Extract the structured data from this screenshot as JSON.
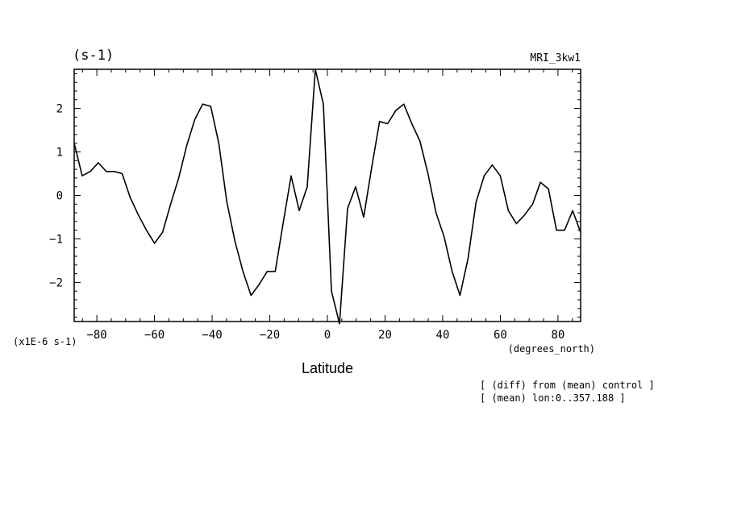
{
  "chart_data": {
    "type": "line",
    "title_left": "(s-1)",
    "title_right": "MRI_3kw1",
    "xlabel": "Latitude",
    "xunits": "(degrees_north)",
    "yscale_label": "(x1E-6 s-1)",
    "xlim": [
      -87.86,
      87.86
    ],
    "ylim": [
      -2.9,
      2.9
    ],
    "xticks": [
      -80,
      -60,
      -40,
      -20,
      0,
      20,
      40,
      60,
      80
    ],
    "xtick_labels": [
      "−80",
      "−60",
      "−40",
      "−20",
      "0",
      "20",
      "40",
      "60",
      "80"
    ],
    "yticks": [
      -2,
      -1,
      0,
      1,
      2
    ],
    "ytick_labels": [
      "−2",
      "−1",
      "0",
      "1",
      "2"
    ],
    "notes": [
      "[ (diff) from (mean) control ]",
      "[ (mean) lon:0..357.188 ]"
    ],
    "series": [
      {
        "x": [
          -87.86,
          -85.1,
          -82.3,
          -79.5,
          -76.7,
          -73.9,
          -71.2,
          -68.4,
          -65.6,
          -62.8,
          -60.0,
          -57.2,
          -54.4,
          -51.6,
          -48.8,
          -46.0,
          -43.3,
          -40.5,
          -37.7,
          -34.9,
          -32.1,
          -29.3,
          -26.5,
          -23.7,
          -20.9,
          -18.1,
          -15.4,
          -12.6,
          -9.8,
          -7.0,
          -4.2,
          -1.4,
          1.4,
          4.2,
          7.0,
          9.8,
          12.6,
          15.4,
          18.1,
          20.9,
          23.7,
          26.5,
          29.3,
          32.1,
          34.9,
          37.7,
          40.5,
          43.3,
          46.0,
          48.8,
          51.6,
          54.4,
          57.2,
          60.0,
          62.8,
          65.6,
          68.4,
          71.2,
          73.9,
          76.7,
          79.5,
          82.3,
          85.1,
          87.86
        ],
        "y": [
          1.2,
          0.45,
          0.55,
          0.75,
          0.55,
          0.55,
          0.5,
          -0.05,
          -0.45,
          -0.8,
          -1.1,
          -0.85,
          -0.2,
          0.4,
          1.15,
          1.75,
          2.1,
          2.05,
          1.2,
          -0.15,
          -1.05,
          -1.75,
          -2.3,
          -2.05,
          -1.75,
          -1.75,
          -0.65,
          0.45,
          -0.35,
          0.2,
          2.9,
          2.1,
          -2.2,
          -2.95,
          -0.3,
          0.2,
          -0.5,
          0.65,
          1.7,
          1.65,
          1.95,
          2.1,
          1.65,
          1.25,
          0.5,
          -0.4,
          -0.95,
          -1.75,
          -2.3,
          -1.45,
          -0.15,
          0.45,
          0.7,
          0.45,
          -0.35,
          -0.65,
          -0.45,
          -0.2,
          0.3,
          0.15,
          -0.8,
          -0.8,
          -0.35,
          -0.85
        ]
      }
    ]
  }
}
